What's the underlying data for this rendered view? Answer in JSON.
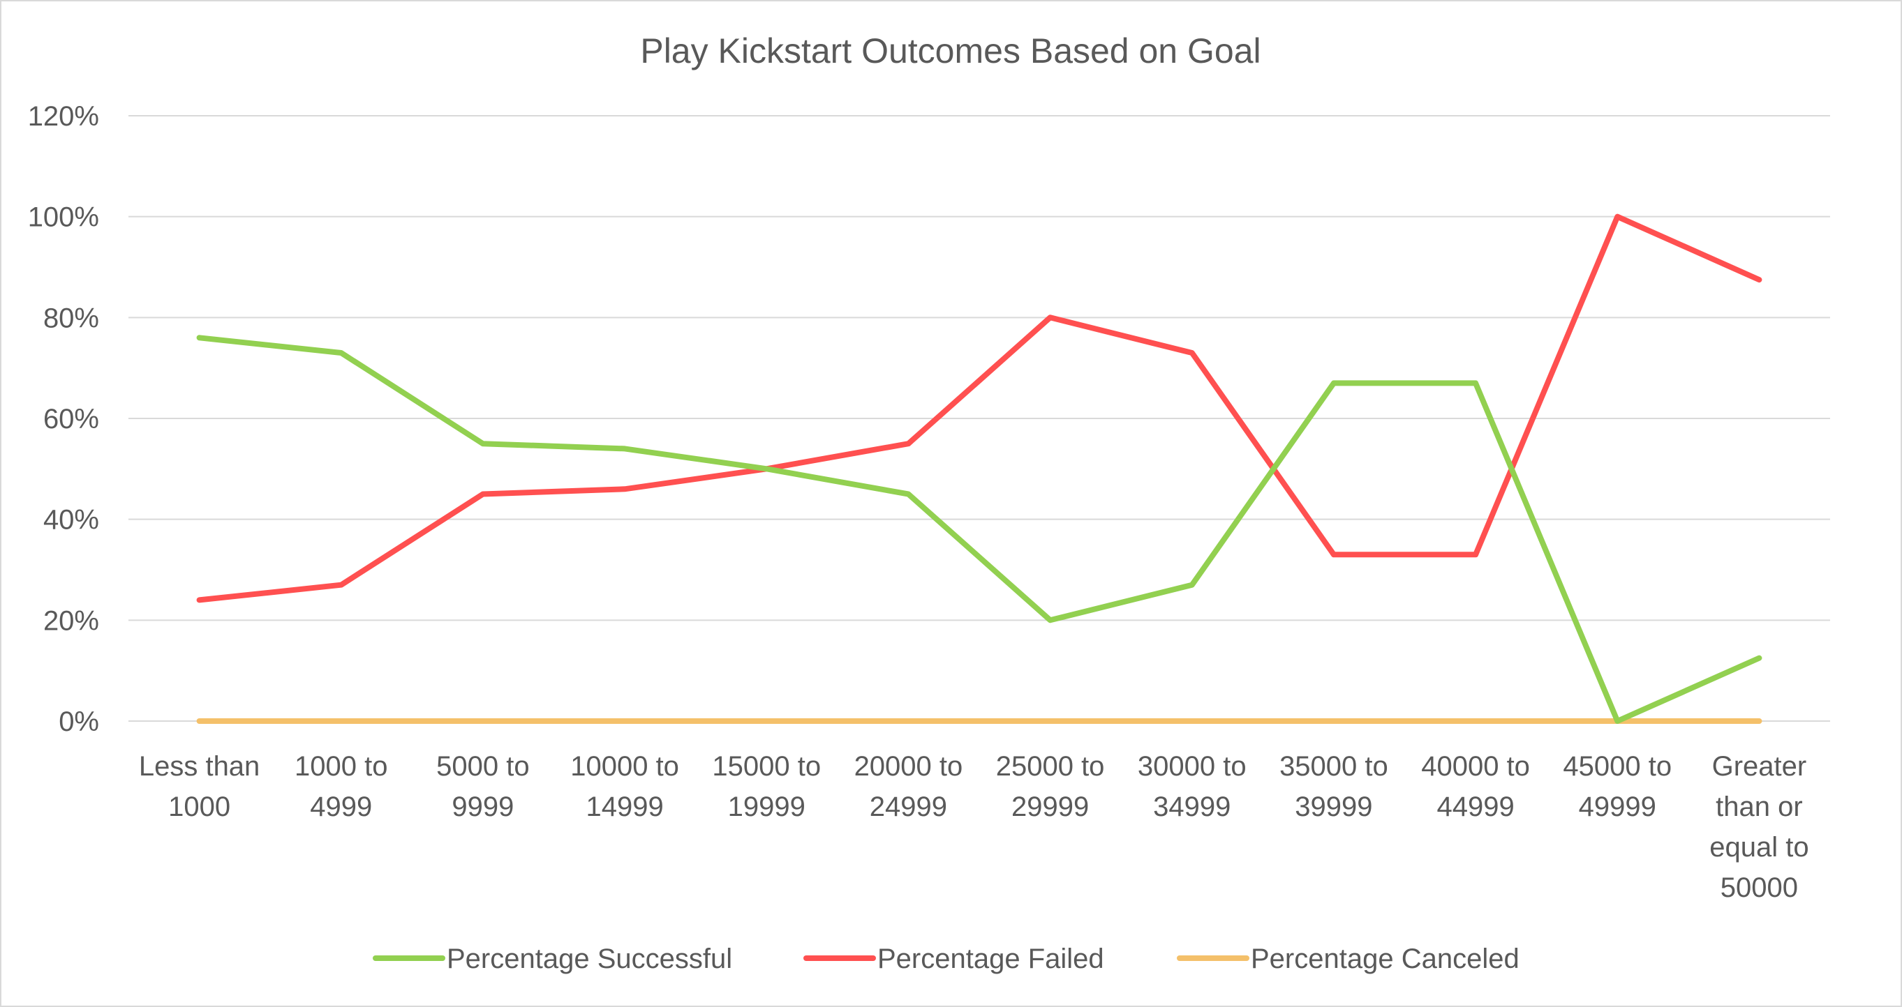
{
  "chart_data": {
    "type": "line",
    "title": "Play Kickstart Outcomes Based on Goal",
    "xlabel": "",
    "ylabel": "",
    "categories": [
      [
        "Less than",
        "1000"
      ],
      [
        "1000 to",
        "4999"
      ],
      [
        "5000 to",
        "9999"
      ],
      [
        "10000 to",
        "14999"
      ],
      [
        "15000 to",
        "19999"
      ],
      [
        "20000 to",
        "24999"
      ],
      [
        "25000 to",
        "29999"
      ],
      [
        "30000 to",
        "34999"
      ],
      [
        "35000 to",
        "39999"
      ],
      [
        "40000 to",
        "44999"
      ],
      [
        "45000 to",
        "49999"
      ],
      [
        "Greater",
        "than or",
        "equal to",
        "50000"
      ]
    ],
    "ylim": [
      0,
      1.2
    ],
    "yticks": [
      0,
      0.2,
      0.4,
      0.6,
      0.8,
      1.0,
      1.2
    ],
    "ytick_labels": [
      "0%",
      "20%",
      "40%",
      "60%",
      "80%",
      "100%",
      "120%"
    ],
    "grid": true,
    "legend_position": "bottom",
    "series": [
      {
        "name": "Percentage Successful",
        "color": "#92d050",
        "values": [
          0.76,
          0.73,
          0.55,
          0.54,
          0.5,
          0.45,
          0.2,
          0.27,
          0.67,
          0.67,
          0.0,
          0.125
        ]
      },
      {
        "name": "Percentage Failed",
        "color": "#ff5050",
        "values": [
          0.24,
          0.27,
          0.45,
          0.46,
          0.5,
          0.55,
          0.8,
          0.73,
          0.33,
          0.33,
          1.0,
          0.875
        ]
      },
      {
        "name": "Percentage Canceled",
        "color": "#f4c06a",
        "values": [
          0,
          0,
          0,
          0,
          0,
          0,
          0,
          0,
          0,
          0,
          0,
          0
        ]
      }
    ]
  }
}
